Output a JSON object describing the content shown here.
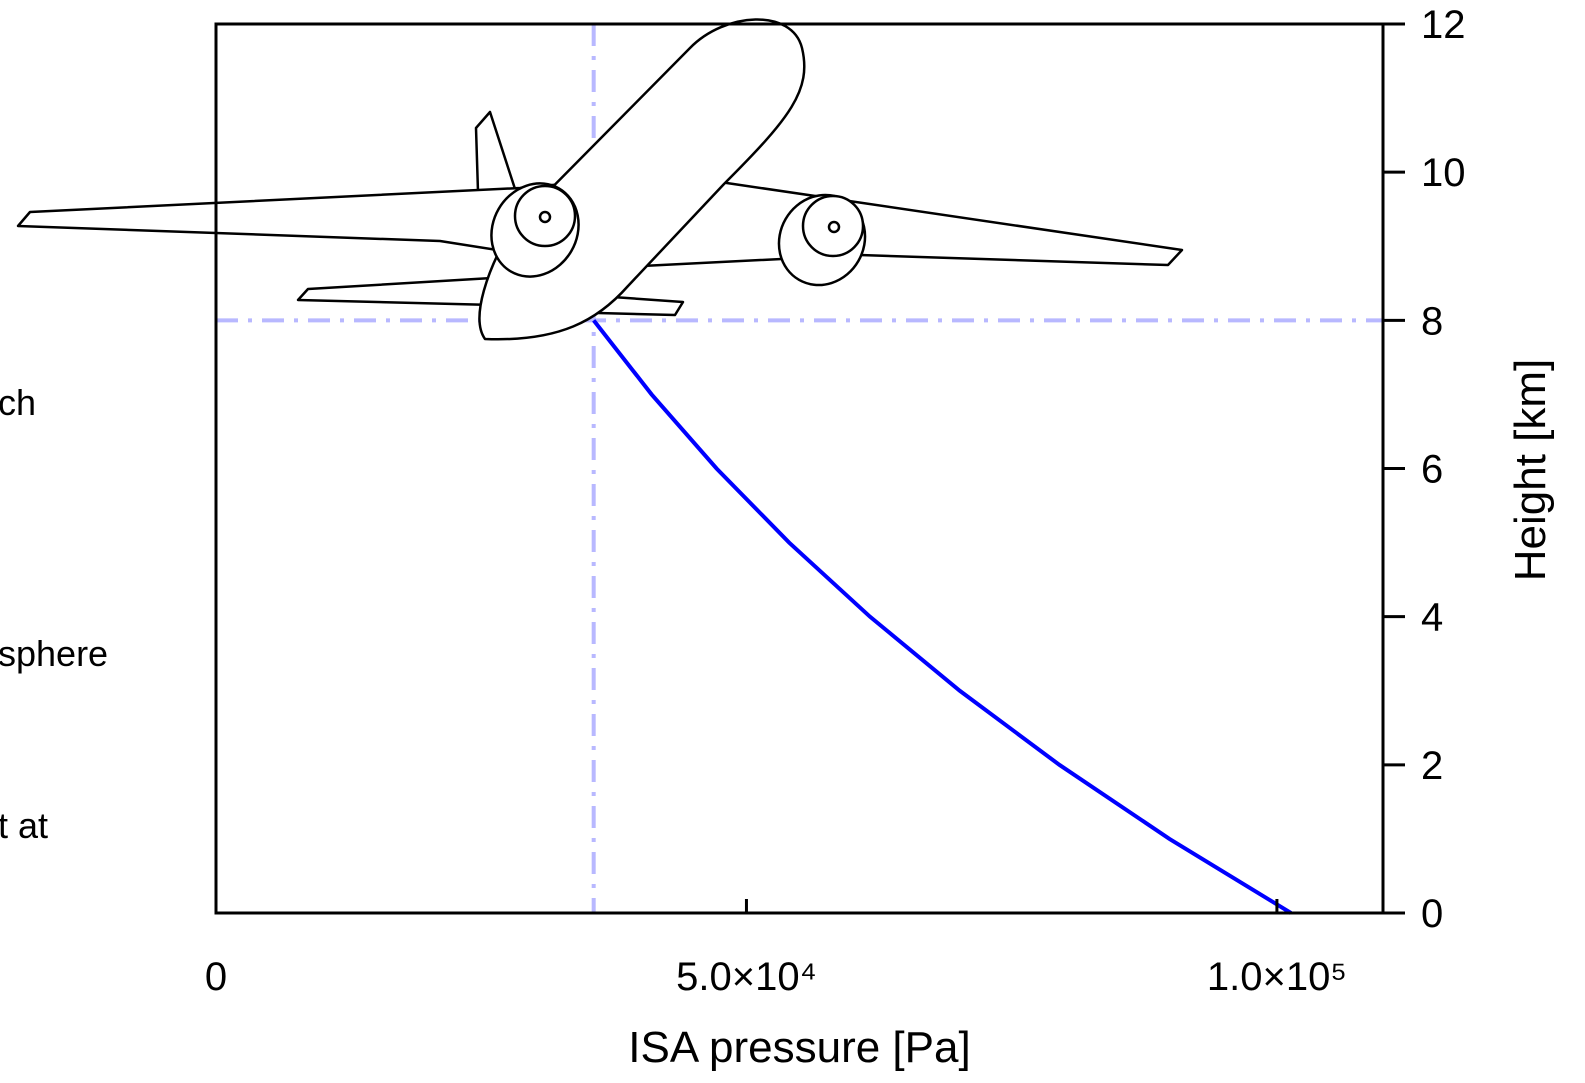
{
  "chart_data": {
    "type": "line",
    "xlabel": "ISA pressure [Pa]",
    "ylabel": "Height [km]",
    "annotations": [
      "ch",
      "sphere",
      "t at"
    ],
    "x": [
      101325,
      89875,
      79495,
      70108,
      61641,
      54020,
      47181,
      41060,
      35600
    ],
    "series": [
      {
        "color": "#0000ff",
        "values": [
          0,
          1,
          2,
          3,
          4,
          5,
          6,
          7,
          8
        ]
      }
    ],
    "xlim": [
      0,
      110000
    ],
    "ylim": [
      0,
      12
    ],
    "xticks": [
      0,
      {
        "value": 50000,
        "label": "5.0×10⁴"
      },
      {
        "value": 100000,
        "label": "1.0×10⁵"
      }
    ],
    "yticks": [
      0,
      2,
      4,
      6,
      8,
      10,
      12
    ],
    "reference_lines": {
      "x": 35600,
      "y": 8,
      "color": "#b8b8ff"
    }
  }
}
